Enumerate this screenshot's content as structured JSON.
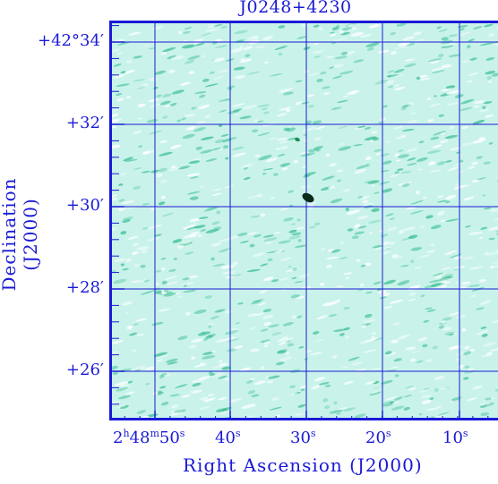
{
  "title": "J0248+4230",
  "xlabel": "Right Ascension (J2000)",
  "ylabel": "Declination (J2000)",
  "dec_ticks": [
    "+42°34′",
    "+32′",
    "+30′",
    "+28′",
    "+26′"
  ],
  "ra_ticks": [
    {
      "main": "2",
      "u1": "h",
      "mid": "48",
      "u2": "m",
      "sec": "50",
      "u3": "s"
    },
    {
      "sec": "40",
      "u3": "s"
    },
    {
      "sec": "30",
      "u3": "s"
    },
    {
      "sec": "20",
      "u3": "s"
    },
    {
      "sec": "10",
      "u3": "s"
    }
  ],
  "colors": {
    "axis": "#1a1ad6",
    "background": "#c9f3ea",
    "noise": "#2fb98a",
    "source": "#0a2a1a"
  }
}
